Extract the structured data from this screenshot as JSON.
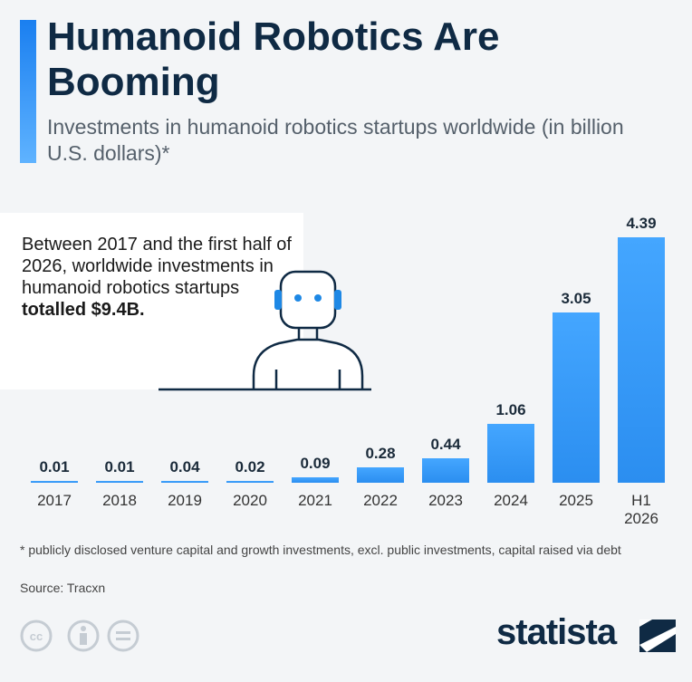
{
  "chart_data": {
    "type": "bar",
    "title": "Humanoid Robotics Are Booming",
    "subtitle": "Investments in humanoid robotics startups worldwide (in billion U.S. dollars)*",
    "annotation": {
      "text": "Between 2017 and the first half of 2026, worldwide investments in humanoid robotics startups",
      "bold": "totalled $9.4B."
    },
    "categories": [
      "2017",
      "2018",
      "2019",
      "2020",
      "2021",
      "2022",
      "2023",
      "2024",
      "2025",
      "H1 2026"
    ],
    "values": [
      0.01,
      0.01,
      0.04,
      0.02,
      0.09,
      0.28,
      0.44,
      1.06,
      3.05,
      4.39
    ],
    "color": "#2b8ef0",
    "footnote": "* publicly disclosed venture capital and growth investments, excl. public investments, capital raised via debt",
    "source": "Source: Tracxn",
    "brand": "statista"
  }
}
